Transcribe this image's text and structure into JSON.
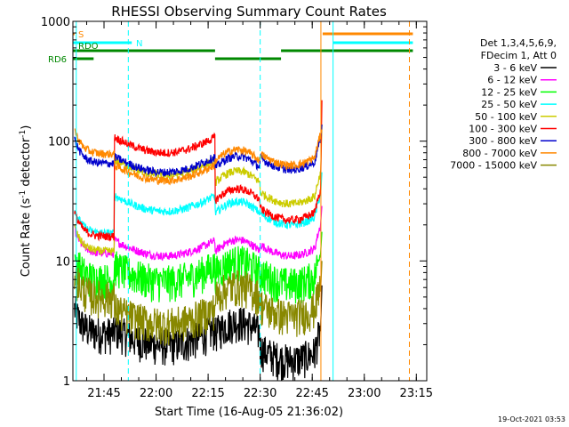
{
  "chart_data": {
    "type": "line",
    "title": "RHESSI Observing Summary Count Rates",
    "xlabel": "Start Time (16-Aug-05 21:36:02)",
    "ylabel": "Count Rate (s⁻¹ detector⁻¹)",
    "ylabel_main": "Count Rate (s",
    "ylabel_sup1": "-1",
    "ylabel_mid": " detector",
    "ylabel_sup2": "-1",
    "ylabel_end": ")",
    "y_scale": "log",
    "ylim": [
      1,
      1000
    ],
    "xlim": [
      "21:36:02",
      "23:18:00"
    ],
    "x_ticks": [
      "21:45",
      "22:00",
      "22:15",
      "22:30",
      "22:45",
      "23:00",
      "23:15"
    ],
    "y_ticks": [
      "1",
      "10",
      "100",
      "1000"
    ],
    "legend_header": [
      "Det 1,3,4,5,6,9,",
      "FDecim 1, Att 0"
    ],
    "series": [
      {
        "name": "3 - 6 keV",
        "color": "#000000",
        "level_min": [
          2.5,
          2.0,
          2.5,
          1.5,
          2.5
        ]
      },
      {
        "name": "6 - 12 keV",
        "color": "#ff00ff",
        "level_min": [
          11.5,
          11.0,
          12.0,
          11.0,
          11.5
        ]
      },
      {
        "name": "12 - 25 keV",
        "color": "#00ff00",
        "level_min": [
          7.0,
          6.8,
          8.0,
          6.5,
          7.0
        ]
      },
      {
        "name": "25 - 50 keV",
        "color": "#00ffff",
        "level_min": [
          17.0,
          26.0,
          25.0,
          20.0,
          22.0
        ]
      },
      {
        "name": "50 - 100 keV",
        "color": "#cccc00",
        "level_min": [
          12.0,
          52.0,
          45.0,
          30.0,
          55.0
        ]
      },
      {
        "name": "100 - 300 keV",
        "color": "#ff0000",
        "level_min": [
          16.0,
          80.0,
          32.0,
          22.0,
          88.0
        ]
      },
      {
        "name": "300 - 800 keV",
        "color": "#0000cc",
        "level_min": [
          65.0,
          55.0,
          60.0,
          58.0,
          55.0
        ]
      },
      {
        "name": "800 - 7000 keV",
        "color": "#ff8800",
        "level_min": [
          78.0,
          47.0,
          68.0,
          63.0,
          50.0
        ]
      },
      {
        "name": "7000 - 15000 keV",
        "color": "#888800",
        "level_min": [
          5.0,
          3.0,
          5.0,
          3.5,
          4.0
        ]
      }
    ],
    "flag_bars": [
      {
        "label": "S",
        "color": "#ff8800",
        "segments": [
          [
            "21:36:02",
            "21:36:30"
          ],
          [
            "22:48:00",
            "23:14:00"
          ]
        ]
      },
      {
        "label": "N",
        "color": "#00ffff",
        "segments": [
          [
            "21:36:02",
            "21:53:00"
          ],
          [
            "22:51:00",
            "23:14:00"
          ]
        ]
      },
      {
        "label": "RDO",
        "color": "#008800",
        "segments": [
          [
            "21:36:02",
            "22:17:00"
          ],
          [
            "22:36:00",
            "23:14:00"
          ]
        ]
      },
      {
        "label": "RD6",
        "color": "#008800",
        "segments": [
          [
            "21:36:02",
            "21:42:00"
          ],
          [
            "22:17:00",
            "22:36:00"
          ]
        ]
      }
    ],
    "vertical_markers": [
      {
        "time": "21:37:00",
        "color": "#00ffff",
        "style": "solid"
      },
      {
        "time": "21:52:00",
        "color": "#00ffff",
        "style": "dashed"
      },
      {
        "time": "22:30:00",
        "color": "#00ffff",
        "style": "dashed"
      },
      {
        "time": "22:47:30",
        "color": "#ff8800",
        "style": "solid"
      },
      {
        "time": "22:51:00",
        "color": "#00ffff",
        "style": "solid"
      },
      {
        "time": "23:13:00",
        "color": "#ff8800",
        "style": "dashed"
      }
    ],
    "timestamp": "19-Oct-2021 03:53",
    "grid": false,
    "legend_position": "right"
  }
}
